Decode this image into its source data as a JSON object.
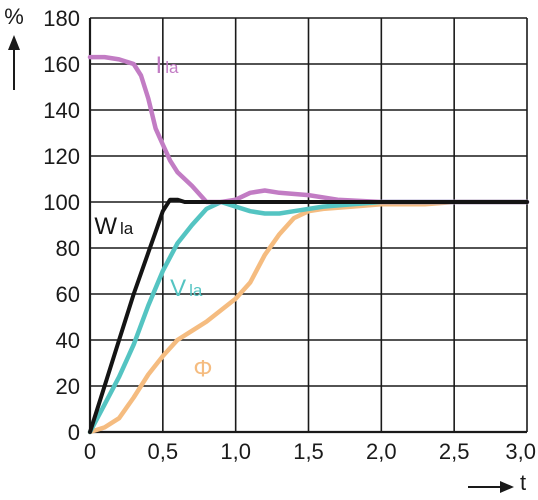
{
  "chart_data": {
    "type": "line",
    "ylabel": "%",
    "xlabel": "t",
    "xlim": [
      0,
      3.0
    ],
    "ylim": [
      0,
      180
    ],
    "grid": true,
    "x_ticks": [
      {
        "value": 0,
        "label": "0"
      },
      {
        "value": 0.5,
        "label": "0,5"
      },
      {
        "value": 1.0,
        "label": "1,0"
      },
      {
        "value": 1.5,
        "label": "1,5"
      },
      {
        "value": 2.0,
        "label": "2,0"
      },
      {
        "value": 2.5,
        "label": "2,5"
      },
      {
        "value": 3.0,
        "label": "3,0"
      }
    ],
    "y_ticks": [
      {
        "value": 0,
        "label": "0"
      },
      {
        "value": 20,
        "label": "20"
      },
      {
        "value": 40,
        "label": "40"
      },
      {
        "value": 60,
        "label": "60"
      },
      {
        "value": 80,
        "label": "80"
      },
      {
        "value": 100,
        "label": "100"
      },
      {
        "value": 120,
        "label": "120"
      },
      {
        "value": 140,
        "label": "140"
      },
      {
        "value": 160,
        "label": "160"
      },
      {
        "value": 180,
        "label": "180"
      }
    ],
    "series": [
      {
        "id": "i",
        "name": "Ila",
        "main": "I",
        "sub": "la",
        "color": "#c27cc4",
        "label_at": [
          0.45,
          160
        ],
        "points": [
          [
            0,
            163
          ],
          [
            0.1,
            163
          ],
          [
            0.2,
            162
          ],
          [
            0.3,
            160
          ],
          [
            0.35,
            155
          ],
          [
            0.4,
            145
          ],
          [
            0.45,
            132
          ],
          [
            0.5,
            125
          ],
          [
            0.55,
            118
          ],
          [
            0.6,
            113
          ],
          [
            0.7,
            107
          ],
          [
            0.8,
            100
          ],
          [
            0.9,
            100
          ],
          [
            1.0,
            101
          ],
          [
            1.1,
            104
          ],
          [
            1.2,
            105
          ],
          [
            1.3,
            104
          ],
          [
            1.5,
            103
          ],
          [
            1.7,
            101
          ],
          [
            2.0,
            100
          ],
          [
            3.0,
            100
          ]
        ]
      },
      {
        "id": "w",
        "name": "Wla",
        "main": "W",
        "sub": "la",
        "color": "#141414",
        "label_at": [
          0.03,
          90
        ],
        "points": [
          [
            0,
            0
          ],
          [
            0.1,
            20
          ],
          [
            0.2,
            40
          ],
          [
            0.3,
            60
          ],
          [
            0.4,
            78
          ],
          [
            0.45,
            87
          ],
          [
            0.5,
            96
          ],
          [
            0.55,
            101
          ],
          [
            0.6,
            101
          ],
          [
            0.65,
            100
          ],
          [
            0.8,
            100
          ],
          [
            1.0,
            100
          ],
          [
            1.3,
            100
          ],
          [
            1.5,
            100
          ],
          [
            2.0,
            100
          ],
          [
            3.0,
            100
          ]
        ]
      },
      {
        "id": "v",
        "name": "Vla",
        "main": "V",
        "sub": "la",
        "color": "#54c4c2",
        "label_at": [
          0.55,
          63
        ],
        "points": [
          [
            0,
            0
          ],
          [
            0.1,
            12
          ],
          [
            0.2,
            24
          ],
          [
            0.3,
            38
          ],
          [
            0.4,
            55
          ],
          [
            0.5,
            70
          ],
          [
            0.6,
            82
          ],
          [
            0.7,
            90
          ],
          [
            0.8,
            97
          ],
          [
            0.9,
            100
          ],
          [
            1.0,
            98
          ],
          [
            1.1,
            96
          ],
          [
            1.2,
            95
          ],
          [
            1.3,
            95
          ],
          [
            1.4,
            96
          ],
          [
            1.6,
            98
          ],
          [
            1.8,
            99
          ],
          [
            2.0,
            100
          ],
          [
            3.0,
            100
          ]
        ]
      },
      {
        "id": "phi",
        "name": "Φ",
        "main": "Φ",
        "sub": "",
        "color": "#f5bc80",
        "label_at": [
          0.71,
          28
        ],
        "points": [
          [
            0,
            0
          ],
          [
            0.1,
            2
          ],
          [
            0.2,
            6
          ],
          [
            0.3,
            15
          ],
          [
            0.4,
            25
          ],
          [
            0.5,
            33
          ],
          [
            0.6,
            40
          ],
          [
            0.7,
            44
          ],
          [
            0.8,
            48
          ],
          [
            0.9,
            53
          ],
          [
            1.0,
            58
          ],
          [
            1.1,
            65
          ],
          [
            1.2,
            77
          ],
          [
            1.3,
            86
          ],
          [
            1.4,
            93
          ],
          [
            1.5,
            96
          ],
          [
            1.6,
            97
          ],
          [
            1.8,
            98
          ],
          [
            2.0,
            99
          ],
          [
            2.3,
            99
          ],
          [
            2.5,
            100
          ],
          [
            3.0,
            100
          ]
        ]
      }
    ]
  }
}
